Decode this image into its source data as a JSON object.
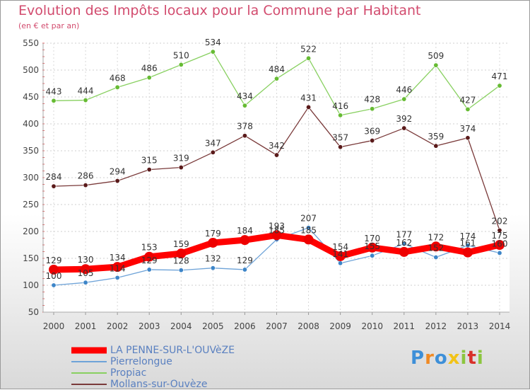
{
  "chart_data": {
    "type": "line",
    "title": "Evolution des Impôts locaux pour la Commune par Habitant",
    "subtitle": "(en € et par an)",
    "x": [
      "2000",
      "2001",
      "2002",
      "2003",
      "2004",
      "2005",
      "2006",
      "2007",
      "2008",
      "2009",
      "2010",
      "2011",
      "2012",
      "2013",
      "2014"
    ],
    "yticks": [
      50,
      100,
      150,
      200,
      250,
      300,
      350,
      400,
      450,
      500,
      550
    ],
    "ylim": [
      50,
      550
    ],
    "grid": true,
    "series": [
      {
        "name": "Propiac",
        "color": "#88d060",
        "point_color": "#66bb33",
        "thick": false,
        "values": [
          443,
          444,
          468,
          486,
          510,
          534,
          434,
          484,
          522,
          416,
          428,
          446,
          509,
          427,
          471
        ],
        "labels": [
          "443",
          "444",
          "468",
          "486",
          "510",
          "534",
          "434",
          "484",
          "522",
          "416",
          "428",
          "446",
          "509",
          "427",
          "471"
        ]
      },
      {
        "name": "Mollans-sur-Ouvèze",
        "color": "#7a3a3a",
        "point_color": "#5a1a1a",
        "thick": false,
        "values": [
          284,
          286,
          294,
          315,
          319,
          347,
          378,
          342,
          431,
          357,
          369,
          392,
          359,
          374,
          202
        ],
        "labels": [
          "284",
          "286",
          "294",
          "315",
          "319",
          "347",
          "378",
          "342",
          "431",
          "357",
          "369",
          "392",
          "359",
          "374",
          "202"
        ]
      },
      {
        "name": "Pierrelongue",
        "color": "#6ea3d8",
        "point_color": "#3d85c8",
        "thick": false,
        "values": [
          100,
          105,
          114,
          129,
          128,
          132,
          129,
          185,
          207,
          141,
          155,
          177,
          152,
          174,
          160
        ],
        "labels": [
          "100",
          "105",
          "114",
          "129",
          "128",
          "132",
          "129",
          "185",
          "207",
          "141",
          "155",
          "177",
          "152",
          "174",
          "160"
        ]
      },
      {
        "name": "LA PENNE-SUR-L'OUVèZE",
        "color": "#ff0000",
        "point_color": "#ee0000",
        "thick": true,
        "values": [
          129,
          130,
          134,
          153,
          159,
          179,
          184,
          193,
          185,
          154,
          170,
          162,
          172,
          161,
          175
        ],
        "labels": [
          "129",
          "130",
          "134",
          "153",
          "159",
          "179",
          "184",
          "193",
          "185",
          "154",
          "170",
          "162",
          "172",
          "161",
          "175"
        ]
      }
    ]
  },
  "legend": [
    {
      "label": "LA PENNE-SUR-L'OUVèZE",
      "color": "#ff0000",
      "thick": true
    },
    {
      "label": "Pierrelongue",
      "color": "#6ea3d8",
      "thick": false
    },
    {
      "label": "Propiac",
      "color": "#88d060",
      "thick": false
    },
    {
      "label": "Mollans-sur-Ouvèze",
      "color": "#7a3a3a",
      "thick": false
    }
  ],
  "logo": {
    "text": "Proxiti",
    "colors": [
      "#3d8fd8",
      "#f08a24",
      "#3d8fd8",
      "#f2c318",
      "#8cc63f",
      "#d8302a",
      "#8cc63f"
    ]
  }
}
